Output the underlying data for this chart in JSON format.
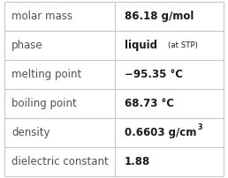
{
  "rows": [
    {
      "label": "molar mass",
      "type": "plain",
      "value": "86.18 g/mol"
    },
    {
      "label": "phase",
      "type": "phase",
      "value": "liquid"
    },
    {
      "label": "melting point",
      "type": "plain",
      "value": "−95.35 °C"
    },
    {
      "label": "boiling point",
      "type": "plain",
      "value": "68.73 °C"
    },
    {
      "label": "density",
      "type": "density",
      "value": "0.6603 g/cm"
    },
    {
      "label": "dielectric constant",
      "type": "plain",
      "value": "1.88"
    }
  ],
  "col_split": 0.505,
  "bg_color": "#ffffff",
  "line_color": "#c8c8c8",
  "label_color": "#505050",
  "value_color": "#1a1a1a",
  "label_fontsize": 8.5,
  "value_fontsize": 8.5,
  "phase_small_fontsize": 6.2,
  "super_fontsize": 5.8
}
